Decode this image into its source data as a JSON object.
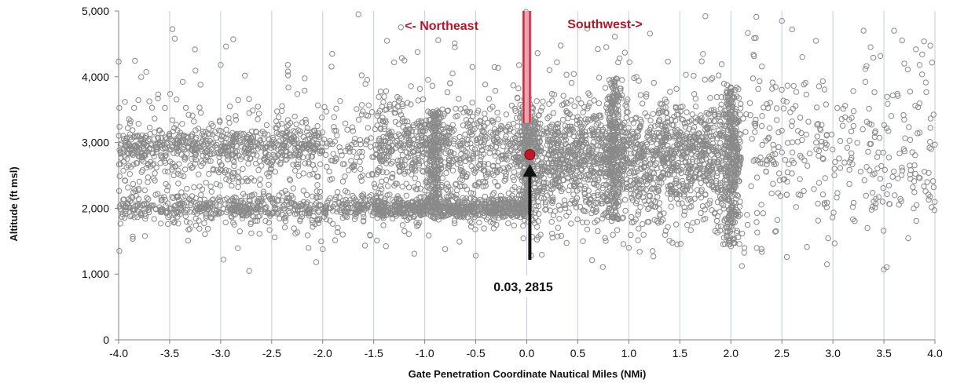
{
  "chart_data": {
    "type": "scatter",
    "title": "",
    "xlabel": "Gate Penetration Coordinate Nautical Miles (NMi)",
    "ylabel": "Altitude (ft msl)",
    "xlim": [
      -4.0,
      4.0
    ],
    "ylim": [
      0,
      5000
    ],
    "x_ticks": [
      -4.0,
      -3.5,
      -3.0,
      -2.5,
      -2.0,
      -1.5,
      -1.0,
      -0.5,
      0.0,
      0.5,
      1.0,
      1.5,
      2.0,
      2.5,
      3.0,
      3.5,
      4.0
    ],
    "x_tick_labels": [
      "-4.0",
      "-3.5",
      "-3.0",
      "-2.5",
      "-2.0",
      "-1.5",
      "-1.0",
      "-0.5",
      "0.0",
      "0.5",
      "1.0",
      "1.5",
      "2.0",
      "2.5",
      "3.0",
      "3.5",
      "4.0"
    ],
    "y_ticks": [
      0,
      1000,
      2000,
      3000,
      4000,
      5000
    ],
    "y_tick_labels": [
      "0",
      "1,000",
      "2,000",
      "3,000",
      "4,000",
      "5,000"
    ],
    "grid": "vertical",
    "marker": "hollow circle",
    "series": [
      {
        "color": "#8a8a8a",
        "density_bands": [
          {
            "xrange": [
              -4.0,
              -2.0
            ],
            "y_center": 2950,
            "y_spread": 150,
            "weight": 0.9
          },
          {
            "xrange": [
              -4.0,
              -1.5
            ],
            "y_center": 2000,
            "y_spread": 90,
            "weight": 0.9
          },
          {
            "xrange": [
              -1.5,
              0.0
            ],
            "y_center": 2000,
            "y_spread": 80,
            "weight": 1.2
          },
          {
            "xrange": [
              -4.0,
              2.1
            ],
            "y_center": 2600,
            "y_spread": 550,
            "weight": 2.2
          },
          {
            "xrange": [
              -1.5,
              2.1
            ],
            "y_center": 2950,
            "y_spread": 300,
            "weight": 1.8
          },
          {
            "xrange": [
              0.0,
              2.1
            ],
            "y_center": 2700,
            "y_spread": 450,
            "weight": 1.5
          },
          {
            "xrange": [
              -4.0,
              4.0
            ],
            "y_center": 3300,
            "y_spread": 800,
            "weight": 0.45
          },
          {
            "xrange": [
              2.0,
              4.0
            ],
            "y_center": 2700,
            "y_spread": 650,
            "weight": 0.55
          }
        ],
        "dense_columns": [
          {
            "x": 0.0,
            "y_range": [
              1900,
              3700
            ]
          },
          {
            "x": 0.85,
            "y_range": [
              1800,
              4000
            ]
          },
          {
            "x": 2.0,
            "y_range": [
              1450,
              3850
            ]
          },
          {
            "x": -0.9,
            "y_range": [
              2000,
              3500
            ]
          }
        ],
        "outliers": [
          [
            -1.65,
            4950
          ],
          [
            1.75,
            4920
          ],
          [
            2.25,
            4910
          ],
          [
            2.5,
            4850
          ],
          [
            2.6,
            4720
          ],
          [
            3.3,
            4700
          ],
          [
            3.6,
            4700
          ],
          [
            -3.45,
            4580
          ],
          [
            3.5,
            1070
          ],
          [
            -1.3,
            4220
          ],
          [
            -0.5,
            1280
          ],
          [
            -0.8,
            1380
          ],
          [
            -2.0,
            1380
          ],
          [
            2.3,
            1380
          ],
          [
            1.0,
            1400
          ],
          [
            -4.0,
            4230
          ],
          [
            -3.0,
            4180
          ],
          [
            3.7,
            4200
          ],
          [
            3.85,
            4180
          ],
          [
            2.7,
            4300
          ]
        ]
      }
    ],
    "threshold_line": {
      "x": 0.0,
      "ylim": [
        3300,
        5000
      ],
      "color": "#c0293f"
    },
    "annotations": {
      "left_direction": "<- Northeast",
      "right_direction": "Southwest->",
      "callout_label": "0.03, 2815",
      "callout_point": {
        "x": 0.03,
        "y": 2815,
        "color": "#c0182a"
      }
    },
    "colors": {
      "grid": "#c4ccd8",
      "axis": "#808080",
      "arrow": "#111111",
      "text": "#111111",
      "direction_text": "#b0182a"
    }
  }
}
